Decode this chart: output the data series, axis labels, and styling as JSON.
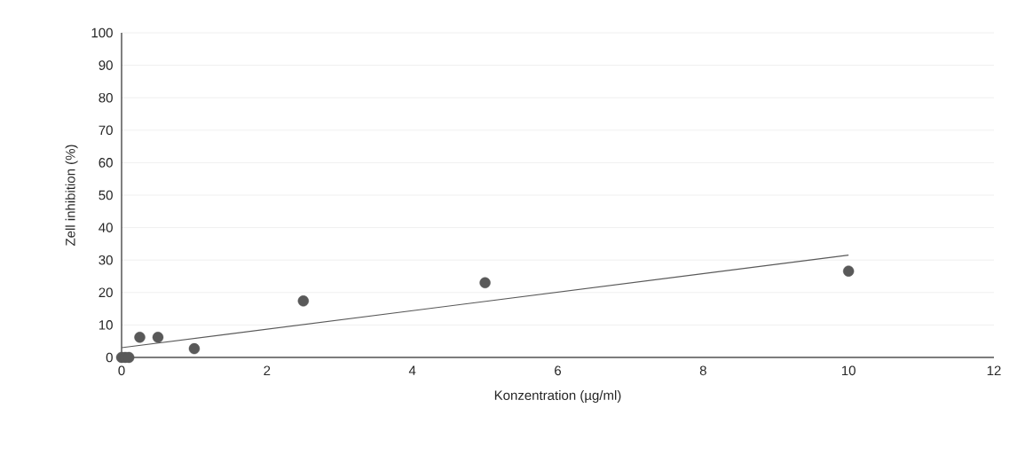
{
  "chart_data": {
    "type": "scatter",
    "xlabel": "Konzentration (µg/ml)",
    "ylabel": "Zell inhibition (%)",
    "xlim": [
      0,
      12
    ],
    "ylim": [
      0,
      100
    ],
    "xticks": [
      0,
      2,
      4,
      6,
      8,
      10,
      12
    ],
    "yticks": [
      0,
      10,
      20,
      30,
      40,
      50,
      60,
      70,
      80,
      90,
      100
    ],
    "grid": "y",
    "series": [
      {
        "type": "scatter",
        "marker": "circle",
        "color": "#595959",
        "x": [
          0,
          0.05,
          0.1,
          0.25,
          0.5,
          1,
          2.5,
          5,
          10
        ],
        "values": [
          0,
          0,
          0,
          6.2,
          6.2,
          2.7,
          17.4,
          23,
          26.6
        ]
      },
      {
        "type": "line",
        "marker": "none",
        "color": "#595959",
        "x": [
          0,
          10
        ],
        "values": [
          3.0,
          31.5
        ]
      }
    ]
  }
}
